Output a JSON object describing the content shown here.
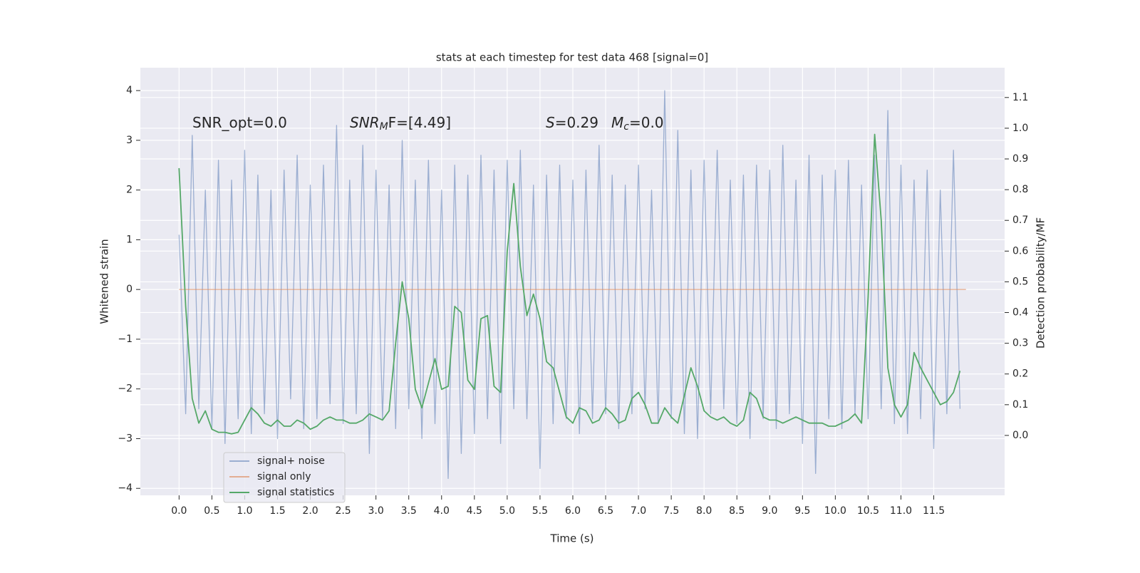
{
  "chart_data": {
    "type": "line",
    "title": "stats at each timestep for test data 468 [signal=0]",
    "xlabel": "Time (s)",
    "ylabel": "Whitened strain",
    "y2label": "Detection probability/MF",
    "annotations": [
      [
        "SNR_opt=0.0"
      ],
      [
        "SNR",
        "M",
        "F=[4.49]"
      ],
      [
        "S",
        "=0.29"
      ],
      [
        "M",
        "c",
        "=0.0"
      ]
    ],
    "xlim": [
      -0.59,
      12.58
    ],
    "ylim": [
      -4.14,
      4.46
    ],
    "y2lim": [
      -0.195,
      1.197
    ],
    "xticks": [
      {
        "value": 0,
        "label": "0.0"
      },
      {
        "value": 0.5,
        "label": "0.5"
      },
      {
        "value": 1,
        "label": "1.0"
      },
      {
        "value": 1.5,
        "label": "1.5"
      },
      {
        "value": 2,
        "label": "2.0"
      },
      {
        "value": 2.5,
        "label": "2.5"
      },
      {
        "value": 3,
        "label": "3.0"
      },
      {
        "value": 3.5,
        "label": "3.5"
      },
      {
        "value": 4,
        "label": "4.0"
      },
      {
        "value": 4.5,
        "label": "4.5"
      },
      {
        "value": 5,
        "label": "5.0"
      },
      {
        "value": 5.5,
        "label": "5.5"
      },
      {
        "value": 6,
        "label": "6.0"
      },
      {
        "value": 6.5,
        "label": "6.5"
      },
      {
        "value": 7,
        "label": "7.0"
      },
      {
        "value": 7.5,
        "label": "7.5"
      },
      {
        "value": 8,
        "label": "8.0"
      },
      {
        "value": 8.5,
        "label": "8.5"
      },
      {
        "value": 9,
        "label": "9.0"
      },
      {
        "value": 9.5,
        "label": "9.5"
      },
      {
        "value": 10,
        "label": "10.0"
      },
      {
        "value": 10.5,
        "label": "10.5"
      },
      {
        "value": 11,
        "label": "11.0"
      },
      {
        "value": 11.5,
        "label": "11.5"
      }
    ],
    "yticks": [
      {
        "value": -4,
        "label": "−4"
      },
      {
        "value": -3,
        "label": "−3"
      },
      {
        "value": -2,
        "label": "−2"
      },
      {
        "value": -1,
        "label": "−1"
      },
      0,
      1,
      2,
      3,
      4
    ],
    "y2ticks": [
      {
        "value": 0,
        "label": "0.0"
      },
      0.1,
      0.2,
      0.3,
      0.4,
      0.5,
      0.6,
      0.7,
      0.8,
      0.9,
      {
        "value": 1,
        "label": "1.0"
      },
      1.1
    ],
    "grid": true,
    "legend": "lower left",
    "series": [
      {
        "name": "signal+ noise",
        "color": "#4c72b0",
        "axis": "y",
        "x": [
          0.0,
          0.1,
          0.2,
          0.3,
          0.4,
          0.5,
          0.6,
          0.7,
          0.8,
          0.9,
          1.0,
          1.1,
          1.2,
          1.3,
          1.4,
          1.5,
          1.6,
          1.7,
          1.8,
          1.9,
          2.0,
          2.1,
          2.2,
          2.3,
          2.4,
          2.5,
          2.6,
          2.7,
          2.8,
          2.9,
          3.0,
          3.1,
          3.2,
          3.3,
          3.4,
          3.5,
          3.6,
          3.7,
          3.8,
          3.9,
          4.0,
          4.1,
          4.2,
          4.3,
          4.4,
          4.5,
          4.6,
          4.7,
          4.8,
          4.9,
          5.0,
          5.1,
          5.2,
          5.3,
          5.4,
          5.5,
          5.6,
          5.7,
          5.8,
          5.9,
          6.0,
          6.1,
          6.2,
          6.3,
          6.4,
          6.5,
          6.6,
          6.7,
          6.8,
          6.9,
          7.0,
          7.1,
          7.2,
          7.3,
          7.4,
          7.5,
          7.6,
          7.7,
          7.8,
          7.9,
          8.0,
          8.1,
          8.2,
          8.3,
          8.4,
          8.5,
          8.6,
          8.7,
          8.8,
          8.9,
          9.0,
          9.1,
          9.2,
          9.3,
          9.4,
          9.5,
          9.6,
          9.7,
          9.8,
          9.9,
          10.0,
          10.1,
          10.2,
          10.3,
          10.4,
          10.5,
          10.6,
          10.7,
          10.8,
          10.9,
          11.0,
          11.1,
          11.2,
          11.3,
          11.4,
          11.5,
          11.6,
          11.7,
          11.8,
          11.9
        ],
        "values": [
          1.1,
          -2.5,
          3.1,
          -2.4,
          2.0,
          -2.8,
          2.6,
          -3.1,
          2.2,
          -2.6,
          2.8,
          -2.9,
          2.3,
          -2.5,
          2.0,
          -3.0,
          2.4,
          -2.2,
          2.7,
          -2.8,
          2.1,
          -2.6,
          2.5,
          -2.3,
          3.3,
          -2.7,
          2.2,
          -2.5,
          2.9,
          -3.3,
          2.4,
          -2.6,
          2.1,
          -2.8,
          3.0,
          -2.4,
          2.2,
          -3.0,
          2.6,
          -2.7,
          2.0,
          -3.8,
          2.5,
          -3.3,
          2.3,
          -2.9,
          2.7,
          -2.6,
          2.4,
          -3.1,
          2.6,
          -2.4,
          2.8,
          -2.6,
          2.1,
          -3.6,
          2.3,
          -2.7,
          2.5,
          -2.6,
          2.2,
          -2.9,
          2.4,
          -2.6,
          2.9,
          -2.5,
          2.3,
          -2.8,
          2.1,
          -2.5,
          2.5,
          -2.4,
          2.0,
          -2.7,
          4.0,
          -2.6,
          3.2,
          -2.9,
          2.4,
          -3.0,
          2.6,
          -2.5,
          2.8,
          -2.4,
          2.2,
          -2.7,
          2.3,
          -3.0,
          2.5,
          -2.6,
          2.4,
          -2.8,
          2.9,
          -2.5,
          2.2,
          -3.1,
          2.7,
          -3.7,
          2.3,
          -2.6,
          2.4,
          -2.8,
          2.6,
          -2.5,
          2.1,
          -2.6,
          2.7,
          -2.4,
          3.6,
          -2.7,
          2.5,
          -2.9,
          2.2,
          -2.6,
          2.4,
          -3.2,
          2.0,
          -2.5,
          2.8,
          -2.4
        ]
      },
      {
        "name": "signal only",
        "color": "#dd8452",
        "axis": "y",
        "x": [
          0.0,
          11.99
        ],
        "values": [
          0,
          0
        ]
      },
      {
        "name": "signal statistics",
        "color": "#55a868",
        "axis": "y2",
        "x": [
          0.0,
          0.1,
          0.2,
          0.3,
          0.4,
          0.5,
          0.6,
          0.7,
          0.8,
          0.9,
          1.0,
          1.1,
          1.2,
          1.3,
          1.4,
          1.5,
          1.6,
          1.7,
          1.8,
          1.9,
          2.0,
          2.1,
          2.2,
          2.3,
          2.4,
          2.5,
          2.6,
          2.7,
          2.8,
          2.9,
          3.0,
          3.1,
          3.2,
          3.3,
          3.4,
          3.5,
          3.6,
          3.7,
          3.8,
          3.9,
          4.0,
          4.1,
          4.2,
          4.3,
          4.4,
          4.5,
          4.6,
          4.7,
          4.8,
          4.9,
          5.0,
          5.1,
          5.2,
          5.3,
          5.4,
          5.5,
          5.6,
          5.7,
          5.8,
          5.9,
          6.0,
          6.1,
          6.2,
          6.3,
          6.4,
          6.5,
          6.6,
          6.7,
          6.8,
          6.9,
          7.0,
          7.1,
          7.2,
          7.3,
          7.4,
          7.5,
          7.6,
          7.7,
          7.8,
          7.9,
          8.0,
          8.1,
          8.2,
          8.3,
          8.4,
          8.5,
          8.6,
          8.7,
          8.8,
          8.9,
          9.0,
          9.1,
          9.2,
          9.3,
          9.4,
          9.5,
          9.6,
          9.7,
          9.8,
          9.9,
          10.0,
          10.1,
          10.2,
          10.3,
          10.4,
          10.5,
          10.6,
          10.7,
          10.8,
          10.9,
          11.0,
          11.1,
          11.2,
          11.3,
          11.4,
          11.5,
          11.6,
          11.7,
          11.8,
          11.9
        ],
        "values": [
          0.87,
          0.42,
          0.12,
          0.04,
          0.08,
          0.02,
          0.01,
          0.01,
          0.005,
          0.01,
          0.05,
          0.09,
          0.07,
          0.04,
          0.03,
          0.05,
          0.03,
          0.03,
          0.05,
          0.04,
          0.02,
          0.03,
          0.05,
          0.06,
          0.05,
          0.05,
          0.04,
          0.04,
          0.05,
          0.07,
          0.06,
          0.05,
          0.08,
          0.3,
          0.5,
          0.38,
          0.15,
          0.09,
          0.17,
          0.25,
          0.15,
          0.16,
          0.42,
          0.4,
          0.18,
          0.15,
          0.38,
          0.39,
          0.16,
          0.14,
          0.6,
          0.82,
          0.55,
          0.39,
          0.46,
          0.38,
          0.24,
          0.22,
          0.14,
          0.06,
          0.04,
          0.09,
          0.08,
          0.04,
          0.05,
          0.09,
          0.07,
          0.04,
          0.05,
          0.12,
          0.14,
          0.1,
          0.04,
          0.04,
          0.09,
          0.06,
          0.04,
          0.13,
          0.22,
          0.16,
          0.08,
          0.06,
          0.05,
          0.06,
          0.04,
          0.03,
          0.05,
          0.14,
          0.12,
          0.06,
          0.05,
          0.05,
          0.04,
          0.05,
          0.06,
          0.05,
          0.04,
          0.04,
          0.04,
          0.03,
          0.03,
          0.04,
          0.05,
          0.07,
          0.04,
          0.45,
          0.98,
          0.7,
          0.22,
          0.1,
          0.06,
          0.1,
          0.27,
          0.22,
          0.18,
          0.14,
          0.1,
          0.11,
          0.14,
          0.21
        ]
      }
    ]
  }
}
